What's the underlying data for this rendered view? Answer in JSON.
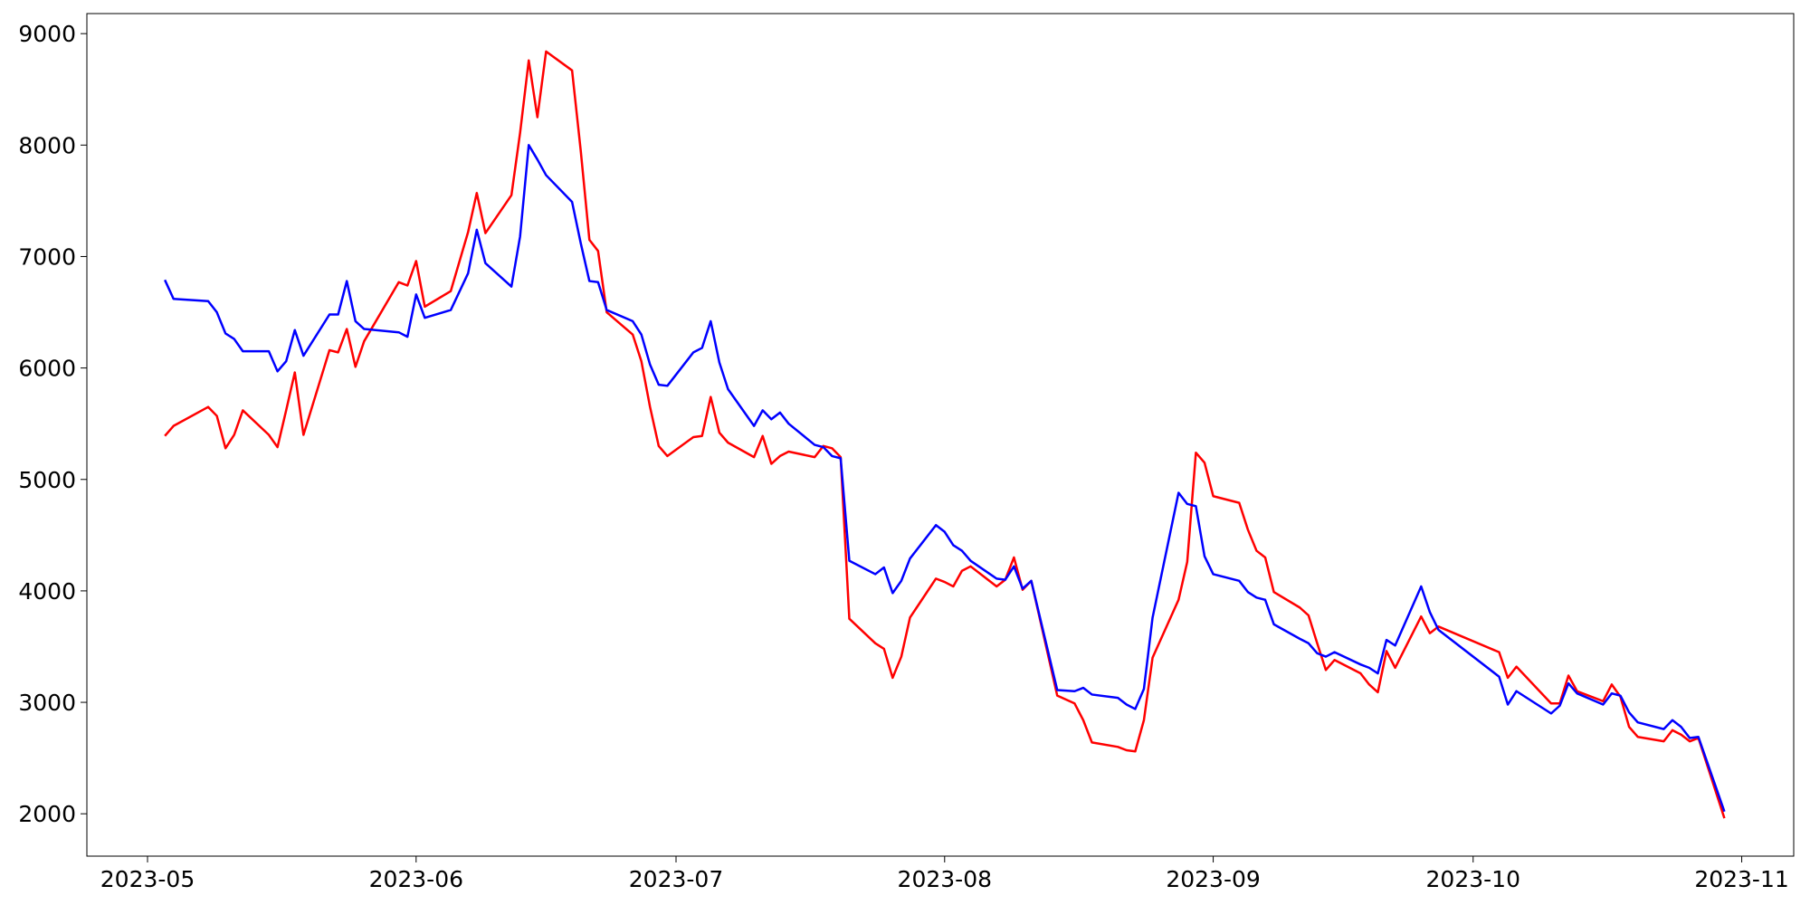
{
  "chart_data": {
    "type": "line",
    "x": [
      "2023-05-03",
      "2023-05-04",
      "2023-05-08",
      "2023-05-09",
      "2023-05-10",
      "2023-05-11",
      "2023-05-12",
      "2023-05-15",
      "2023-05-16",
      "2023-05-17",
      "2023-05-18",
      "2023-05-19",
      "2023-05-22",
      "2023-05-23",
      "2023-05-24",
      "2023-05-25",
      "2023-05-26",
      "2023-05-30",
      "2023-05-31",
      "2023-06-01",
      "2023-06-02",
      "2023-06-05",
      "2023-06-07",
      "2023-06-08",
      "2023-06-09",
      "2023-06-12",
      "2023-06-13",
      "2023-06-14",
      "2023-06-15",
      "2023-06-16",
      "2023-06-19",
      "2023-06-20",
      "2023-06-21",
      "2023-06-22",
      "2023-06-23",
      "2023-06-26",
      "2023-06-27",
      "2023-06-28",
      "2023-06-29",
      "2023-06-30",
      "2023-07-03",
      "2023-07-04",
      "2023-07-05",
      "2023-07-06",
      "2023-07-07",
      "2023-07-10",
      "2023-07-11",
      "2023-07-12",
      "2023-07-13",
      "2023-07-14",
      "2023-07-17",
      "2023-07-18",
      "2023-07-19",
      "2023-07-20",
      "2023-07-21",
      "2023-07-24",
      "2023-07-25",
      "2023-07-26",
      "2023-07-27",
      "2023-07-28",
      "2023-07-31",
      "2023-08-01",
      "2023-08-02",
      "2023-08-03",
      "2023-08-04",
      "2023-08-07",
      "2023-08-08",
      "2023-08-09",
      "2023-08-10",
      "2023-08-11",
      "2023-08-14",
      "2023-08-16",
      "2023-08-17",
      "2023-08-18",
      "2023-08-21",
      "2023-08-22",
      "2023-08-23",
      "2023-08-24",
      "2023-08-25",
      "2023-08-28",
      "2023-08-29",
      "2023-08-30",
      "2023-08-31",
      "2023-09-01",
      "2023-09-04",
      "2023-09-05",
      "2023-09-06",
      "2023-09-07",
      "2023-09-08",
      "2023-09-11",
      "2023-09-12",
      "2023-09-13",
      "2023-09-14",
      "2023-09-15",
      "2023-09-18",
      "2023-09-19",
      "2023-09-20",
      "2023-09-21",
      "2023-09-22",
      "2023-09-25",
      "2023-09-26",
      "2023-09-27",
      "2023-10-04",
      "2023-10-05",
      "2023-10-06",
      "2023-10-10",
      "2023-10-11",
      "2023-10-12",
      "2023-10-13",
      "2023-10-16",
      "2023-10-17",
      "2023-10-18",
      "2023-10-19",
      "2023-10-20",
      "2023-10-23",
      "2023-10-24",
      "2023-10-25",
      "2023-10-26",
      "2023-10-27",
      "2023-10-30"
    ],
    "series": [
      {
        "color": "#ff0000",
        "values": [
          5390,
          5480,
          5650,
          5570,
          5280,
          5400,
          5620,
          5400,
          5290,
          5620,
          5960,
          5400,
          6160,
          6140,
          6350,
          6010,
          6240,
          6770,
          6740,
          6960,
          6550,
          6690,
          7220,
          7570,
          7210,
          7550,
          8110,
          8760,
          8250,
          8840,
          8670,
          7950,
          7150,
          7050,
          6500,
          6300,
          6060,
          5650,
          5300,
          5210,
          5380,
          5390,
          5740,
          5420,
          5330,
          5200,
          5390,
          5140,
          5210,
          5250,
          5200,
          5300,
          5280,
          5200,
          3750,
          3530,
          3480,
          3220,
          3410,
          3760,
          4110,
          4080,
          4040,
          4180,
          4220,
          4040,
          4100,
          4300,
          4010,
          4090,
          3060,
          2990,
          2840,
          2640,
          2600,
          2570,
          2560,
          2840,
          3400,
          3920,
          4260,
          5240,
          5150,
          4850,
          4790,
          4550,
          4360,
          4300,
          3990,
          3850,
          3780,
          3530,
          3290,
          3380,
          3260,
          3160,
          3090,
          3460,
          3310,
          3770,
          3620,
          3680,
          3450,
          3220,
          3320,
          2990,
          2990,
          3240,
          3100,
          3010,
          3160,
          3050,
          2780,
          2690,
          2650,
          2750,
          2710,
          2650,
          2680,
          1960
        ]
      },
      {
        "color": "#0000ff",
        "values": [
          6790,
          6620,
          6600,
          6500,
          6310,
          6260,
          6150,
          6150,
          5970,
          6060,
          6340,
          6110,
          6480,
          6480,
          6780,
          6420,
          6350,
          6320,
          6280,
          6660,
          6450,
          6520,
          6850,
          7240,
          6940,
          6730,
          7180,
          8000,
          7870,
          7730,
          7490,
          7120,
          6780,
          6770,
          6520,
          6420,
          6300,
          6030,
          5850,
          5840,
          6140,
          6180,
          6420,
          6050,
          5810,
          5480,
          5620,
          5540,
          5600,
          5500,
          5310,
          5290,
          5210,
          5190,
          4270,
          4150,
          4210,
          3980,
          4090,
          4290,
          4590,
          4530,
          4410,
          4360,
          4270,
          4110,
          4100,
          4220,
          4020,
          4090,
          3110,
          3100,
          3130,
          3070,
          3040,
          2980,
          2940,
          3120,
          3760,
          4880,
          4780,
          4760,
          4310,
          4150,
          4090,
          3990,
          3940,
          3920,
          3700,
          3570,
          3530,
          3440,
          3410,
          3450,
          3340,
          3310,
          3260,
          3560,
          3510,
          4040,
          3810,
          3650,
          3230,
          2980,
          3100,
          2900,
          2970,
          3170,
          3080,
          2980,
          3080,
          3060,
          2910,
          2820,
          2760,
          2840,
          2780,
          2680,
          2690,
          2020
        ]
      }
    ],
    "xlim": [
      "2023-04-24",
      "2023-11-07"
    ],
    "xticks": [
      {
        "value": "2023-05-01",
        "label": "2023-05"
      },
      {
        "value": "2023-06-01",
        "label": "2023-06"
      },
      {
        "value": "2023-07-01",
        "label": "2023-07"
      },
      {
        "value": "2023-08-01",
        "label": "2023-08"
      },
      {
        "value": "2023-09-01",
        "label": "2023-09"
      },
      {
        "value": "2023-10-01",
        "label": "2023-10"
      },
      {
        "value": "2023-11-01",
        "label": "2023-11"
      }
    ],
    "ylim": [
      1620,
      9180
    ],
    "yticks": [
      2000,
      3000,
      4000,
      5000,
      6000,
      7000,
      8000,
      9000
    ],
    "grid": false
  }
}
